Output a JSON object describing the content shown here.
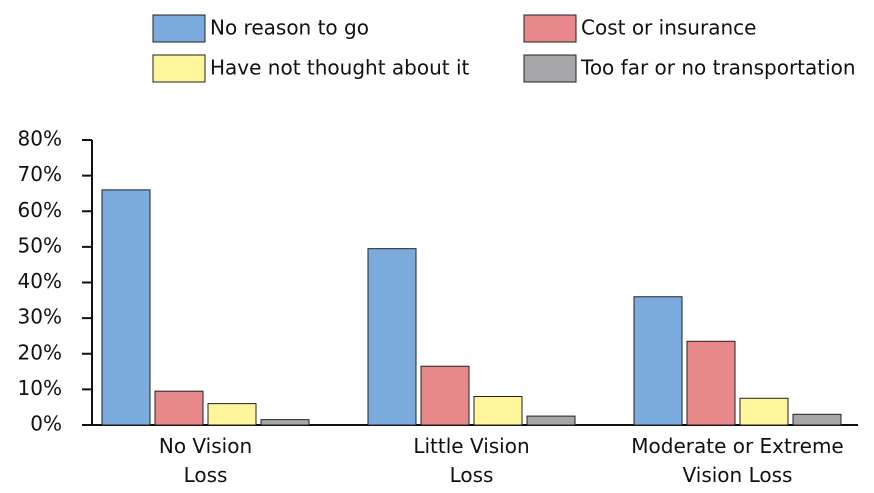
{
  "chart_data": {
    "type": "bar",
    "categories": [
      "No Vision Loss",
      "Little Vision Loss",
      "Moderate or Extreme Vision Loss"
    ],
    "series": [
      {
        "name": "No reason to go",
        "color": "#7aabdc",
        "values": [
          66,
          49.5,
          36
        ]
      },
      {
        "name": "Cost or insurance",
        "color": "#e8888a",
        "values": [
          9.5,
          16.5,
          23.5
        ]
      },
      {
        "name": "Have not thought about it",
        "color": "#fff59a",
        "values": [
          6,
          8,
          7.5
        ]
      },
      {
        "name": "Too far or no transportation",
        "color": "#a7a7a9",
        "values": [
          1.5,
          2.5,
          3
        ]
      }
    ],
    "ylim": [
      0,
      80
    ],
    "yticks": [
      {
        "value": 0,
        "label": "0%"
      },
      {
        "value": 10,
        "label": "10%"
      },
      {
        "value": 20,
        "label": "20%"
      },
      {
        "value": 30,
        "label": "30%"
      },
      {
        "value": 40,
        "label": "40%"
      },
      {
        "value": 50,
        "label": "50%"
      },
      {
        "value": 60,
        "label": "60%"
      },
      {
        "value": 70,
        "label": "70%"
      },
      {
        "value": 80,
        "label": "80%"
      }
    ],
    "grid": false
  }
}
